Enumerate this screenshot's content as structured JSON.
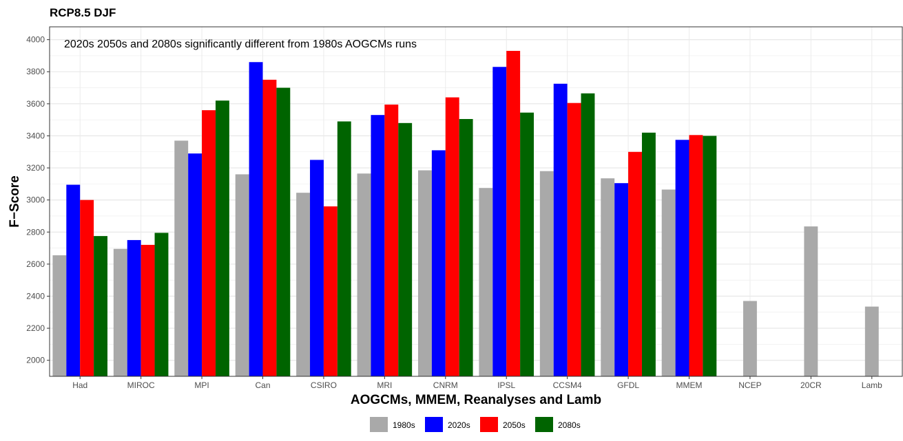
{
  "chart_data": {
    "type": "bar",
    "title": "RCP8.5 DJF",
    "annotation": "2020s 2050s and 2080s significantly different from 1980s AOGCMs runs",
    "xlabel": "AOGCMs, MMEM, Reanalyses and Lamb",
    "ylabel": "F−Score",
    "ylim": [
      1900,
      4080
    ],
    "yticks": [
      2000,
      2200,
      2400,
      2600,
      2800,
      3000,
      3200,
      3400,
      3600,
      3800,
      4000
    ],
    "grid": true,
    "legend_position": "bottom",
    "categories": [
      "Had",
      "MIROC",
      "MPI",
      "Can",
      "CSIRO",
      "MRI",
      "CNRM",
      "IPSL",
      "CCSM4",
      "GFDL",
      "MMEM",
      "NCEP",
      "20CR",
      "Lamb"
    ],
    "series": [
      {
        "name": "1980s",
        "color": "#a9a9a9",
        "values": [
          2655,
          2695,
          3370,
          3160,
          3045,
          3165,
          3185,
          3075,
          3180,
          3135,
          3065,
          2370,
          2835,
          2335
        ]
      },
      {
        "name": "2020s",
        "color": "#0000ff",
        "values": [
          3095,
          2750,
          3290,
          3860,
          3250,
          3530,
          3310,
          3830,
          3725,
          3105,
          3375,
          null,
          null,
          null
        ]
      },
      {
        "name": "2050s",
        "color": "#ff0000",
        "values": [
          3000,
          2720,
          3560,
          3750,
          2960,
          3595,
          3640,
          3930,
          3605,
          3300,
          3405,
          null,
          null,
          null
        ]
      },
      {
        "name": "2080s",
        "color": "#006400",
        "values": [
          2775,
          2795,
          3620,
          3700,
          3490,
          3480,
          3505,
          3545,
          3665,
          3420,
          3400,
          null,
          null,
          null
        ]
      }
    ]
  }
}
